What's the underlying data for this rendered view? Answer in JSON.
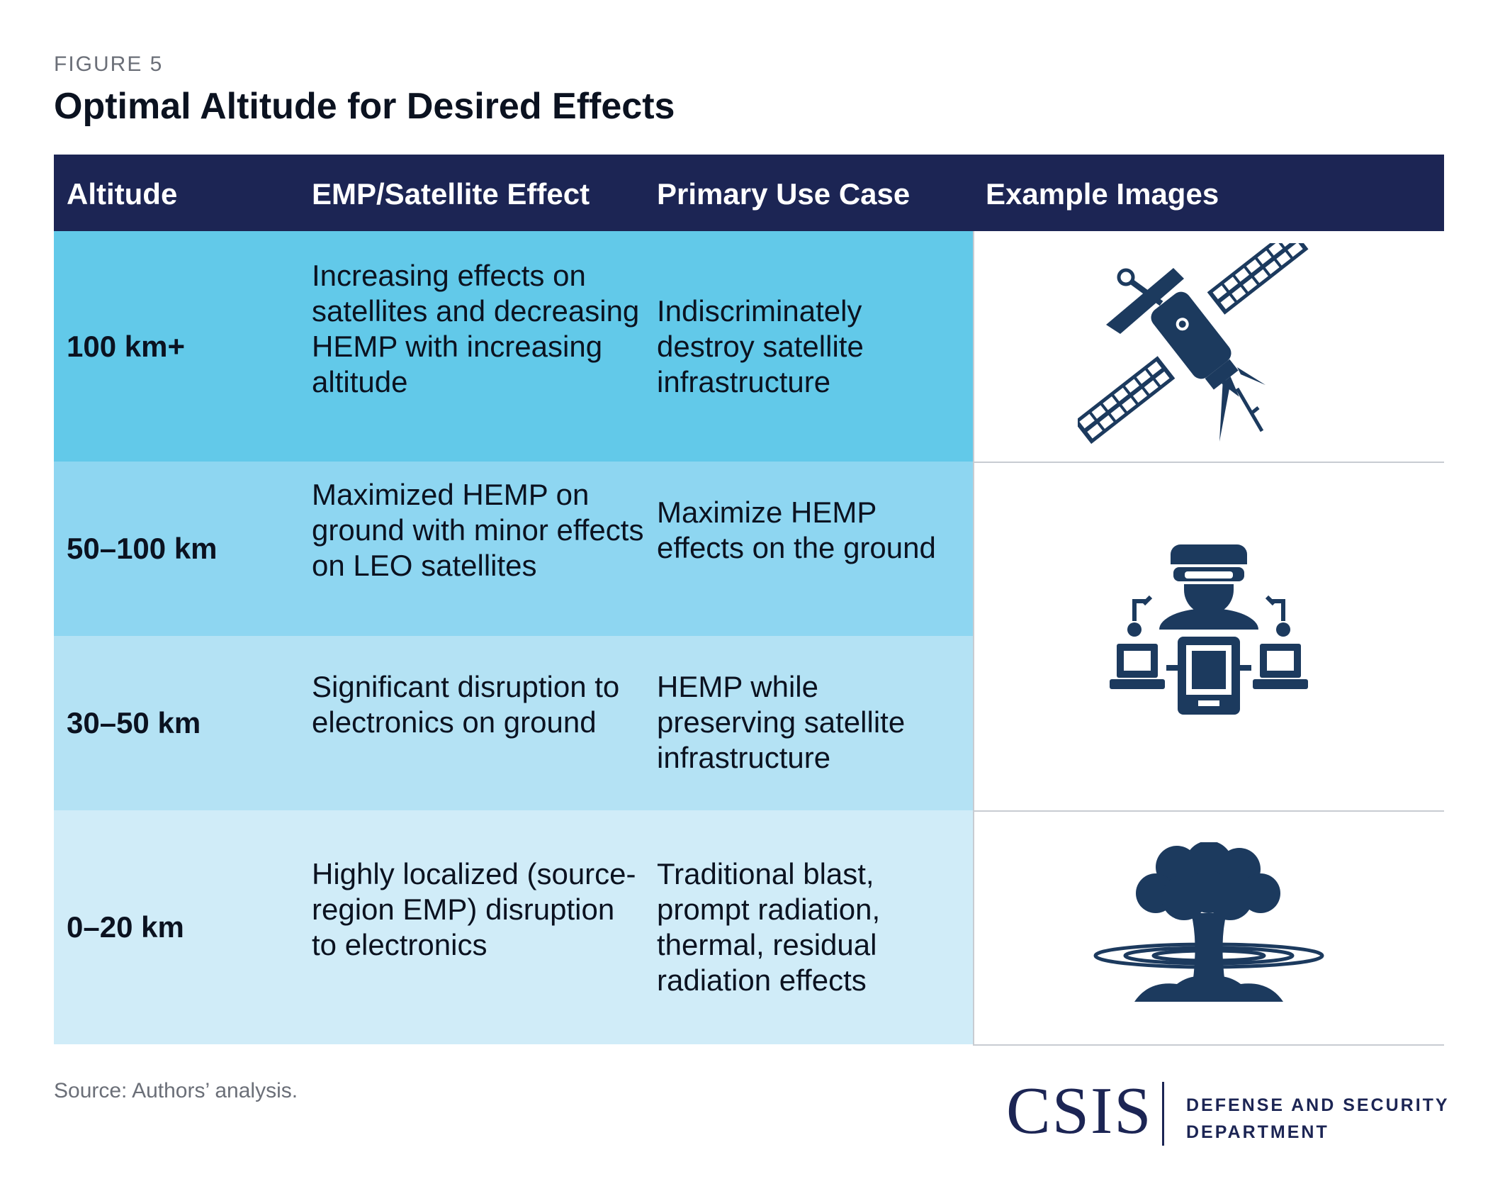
{
  "figure_label": "FIGURE 5",
  "title": "Optimal Altitude for Desired Effects",
  "columns": [
    "Altitude",
    "EMP/Satellite Effect",
    "Primary Use Case",
    "Example Images"
  ],
  "rows": [
    {
      "altitude": "100 km+",
      "effect": "Increasing effects on satellites and decreasing HEMP with increasing altitude",
      "use_case": "Indiscriminately destroy satellite infrastructure",
      "color": "#62c9e9"
    },
    {
      "altitude": "50–100 km",
      "effect": "Maximized HEMP on ground with minor effects on LEO satellites",
      "use_case": "Maximize HEMP effects on the ground",
      "color": "#8ed6f1"
    },
    {
      "altitude": "30–50 km",
      "effect": "Significant disruption to electronics on ground",
      "use_case": "HEMP while preserving satellite infrastructure",
      "color": "#b4e2f4"
    },
    {
      "altitude": "0–20 km",
      "effect": "Highly localized (source-region EMP) disruption to electronics",
      "use_case": "Traditional blast, prompt radiation, thermal, residual radiation effects",
      "color": "#d0ecf8"
    }
  ],
  "images": [
    "satellite-icon",
    "operator-computers-icon",
    "mushroom-cloud-icon"
  ],
  "source": "Source: Authors’ analysis.",
  "logo": {
    "name": "CSIS",
    "dept_line1": "DEFENSE AND SECURITY",
    "dept_line2": "DEPARTMENT"
  },
  "colors": {
    "header": "#1c2554",
    "icon": "#1c3a5e"
  }
}
